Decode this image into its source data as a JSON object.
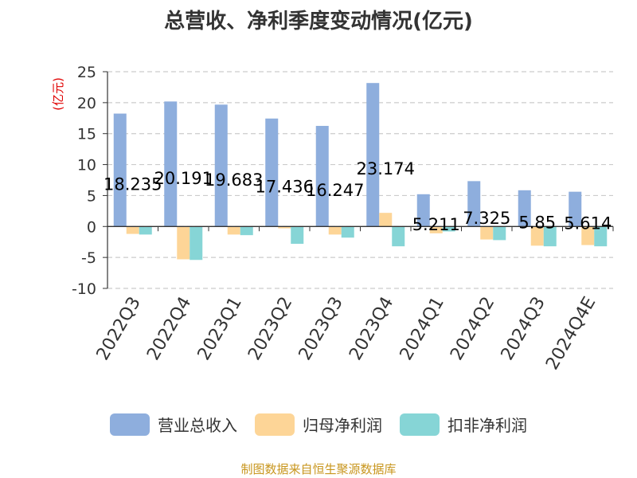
{
  "chart_data": {
    "type": "bar",
    "title": "总营收、净利季度变动情况(亿元)",
    "ylabel": "(亿元)",
    "ylim": [
      -10,
      25
    ],
    "yticks": [
      -10,
      -5,
      0,
      5,
      10,
      15,
      20,
      25
    ],
    "grid": true,
    "legend_position": "bottom",
    "categories": [
      "2022Q3",
      "2022Q4",
      "2023Q1",
      "2023Q2",
      "2023Q3",
      "2023Q4",
      "2024Q1",
      "2024Q2",
      "2024Q3",
      "2024Q4E"
    ],
    "series": [
      {
        "name": "营业总收入",
        "color": "#8eaedd",
        "values": [
          18.235,
          20.191,
          19.683,
          17.436,
          16.247,
          23.174,
          5.211,
          7.325,
          5.85,
          5.614
        ],
        "labels": [
          "18.235",
          "20.191",
          "19.683",
          "17.436",
          "16.247",
          "23.174",
          "5.211",
          "7.325",
          "5.85",
          "5.614"
        ]
      },
      {
        "name": "归母净利润",
        "color": "#fdd597",
        "values": [
          -1.2,
          -5.3,
          -1.3,
          -0.3,
          -1.3,
          2.2,
          -1.1,
          -2.1,
          -3.1,
          -3.0
        ]
      },
      {
        "name": "扣非净利润",
        "color": "#86d5d6",
        "values": [
          -1.3,
          -5.4,
          -1.4,
          -2.8,
          -1.8,
          -3.2,
          -0.8,
          -2.2,
          -3.2,
          -3.2
        ]
      }
    ],
    "source": "制图数据来自恒生聚源数据库"
  },
  "colors": {
    "axis": "#333333",
    "grid": "#cccccc",
    "ylabel": "#e00000",
    "source": "#c8961e"
  }
}
